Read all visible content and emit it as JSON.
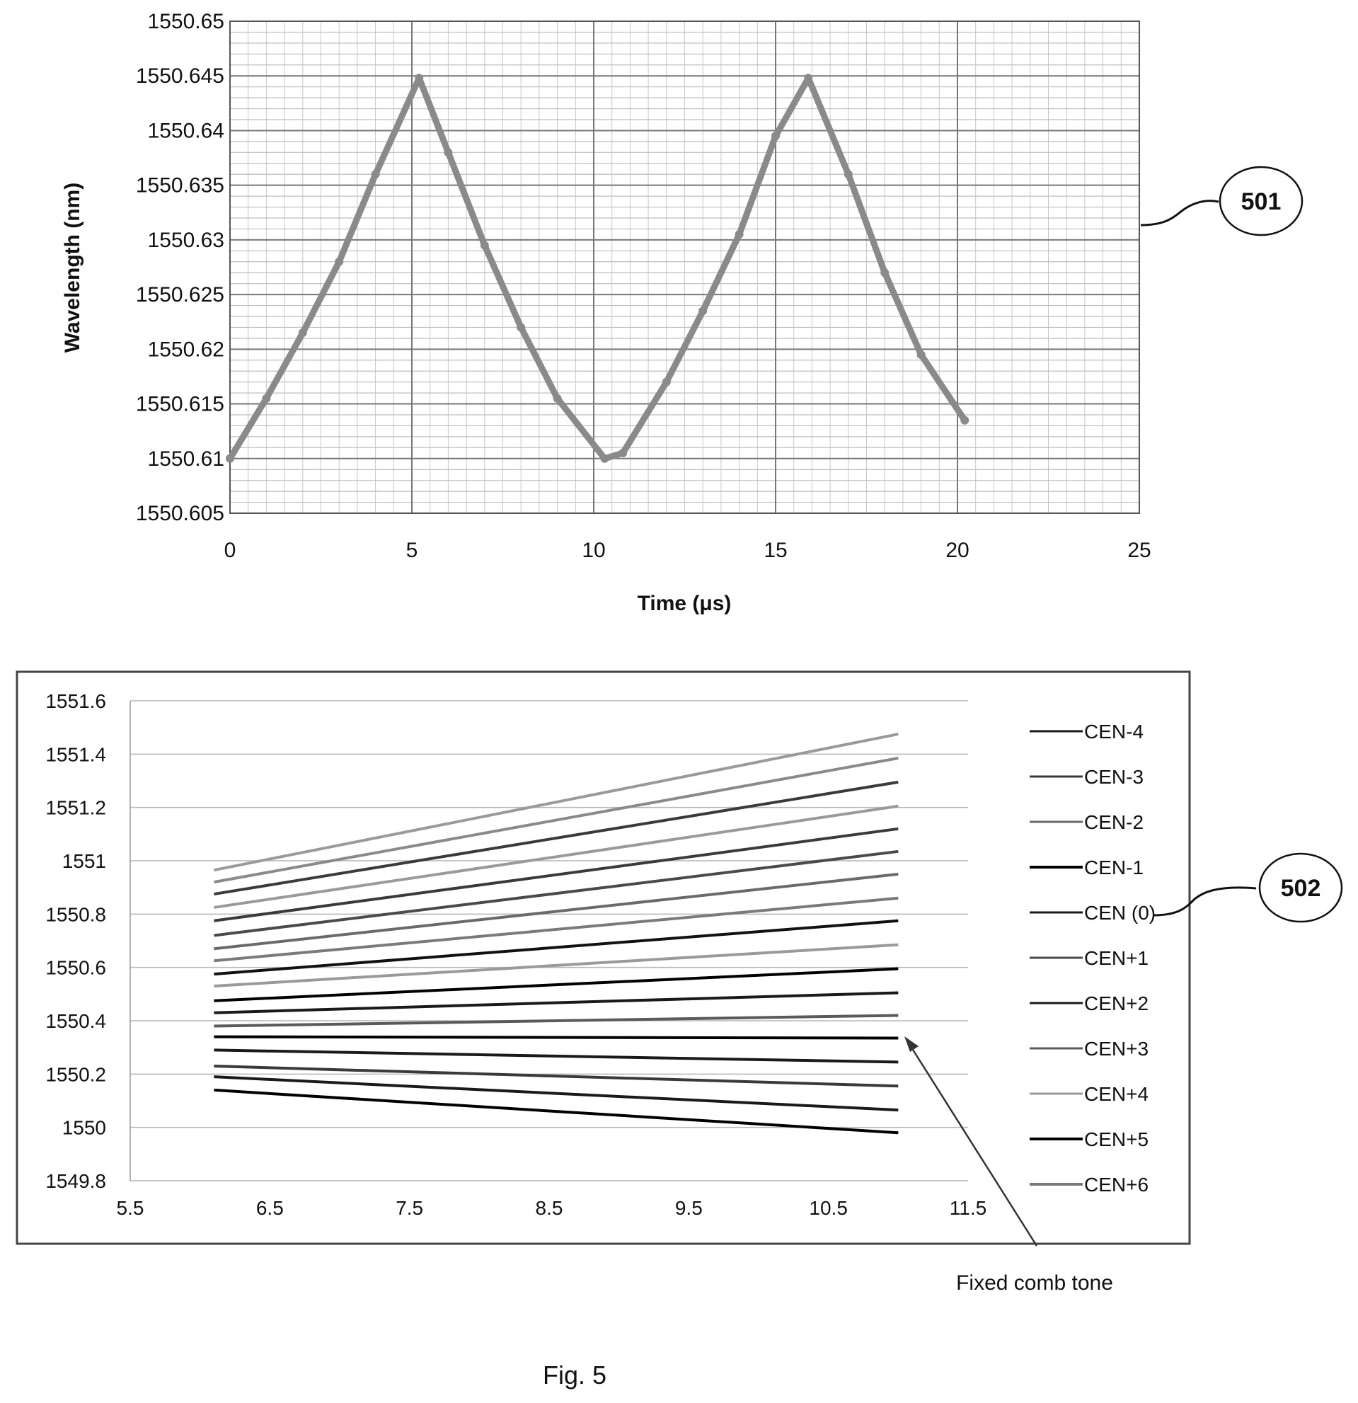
{
  "figure_caption": "Fig. 5",
  "chart_data": [
    {
      "type": "line",
      "ref": "501",
      "xlabel": "Time (μs)",
      "ylabel": "Wavelength (nm)",
      "xlim": [
        0,
        25
      ],
      "ylim": [
        1550.605,
        1550.65
      ],
      "xticks": [
        "0",
        "5",
        "10",
        "15",
        "20",
        "25"
      ],
      "yticks": [
        "1550.605",
        "1550.61",
        "1550.615",
        "1550.62",
        "1550.625",
        "1550.63",
        "1550.635",
        "1550.64",
        "1550.645",
        "1550.65"
      ],
      "grid": true,
      "series": [
        {
          "color": "#8a8a8a",
          "x": [
            0,
            1,
            2,
            3,
            4,
            5.2,
            6,
            7,
            8,
            9,
            10.3,
            10.8,
            12,
            13,
            14,
            15,
            15.9,
            17,
            18,
            19,
            20.2
          ],
          "y": [
            1550.61,
            1550.6155,
            1550.6215,
            1550.628,
            1550.636,
            1550.6448,
            1550.638,
            1550.6295,
            1550.622,
            1550.6155,
            1550.61,
            1550.6105,
            1550.617,
            1550.6235,
            1550.6305,
            1550.6395,
            1550.6448,
            1550.636,
            1550.627,
            1550.6195,
            1550.6135
          ]
        }
      ]
    },
    {
      "type": "line",
      "ref": "502",
      "xlim": [
        5.5,
        11.5
      ],
      "ylim": [
        1549.8,
        1551.6
      ],
      "xticks": [
        "5.5",
        "6.5",
        "7.5",
        "8.5",
        "9.5",
        "10.5",
        "11.5"
      ],
      "yticks": [
        "1549.8",
        "1550",
        "1550.2",
        "1550.4",
        "1550.6",
        "1550.8",
        "1551",
        "1551.2",
        "1551.4",
        "1551.6"
      ],
      "grid": true,
      "legend_position": "right",
      "annotation": "Fixed comb tone",
      "legend": [
        {
          "name": "CEN-4",
          "color": "#1a1a1a",
          "width": 3
        },
        {
          "name": "CEN-3",
          "color": "#3a3a3a",
          "width": 3
        },
        {
          "name": "CEN-2",
          "color": "#6a6a6a",
          "width": 3
        },
        {
          "name": "CEN-1",
          "color": "#000000",
          "width": 4
        },
        {
          "name": "CEN (0)",
          "color": "#1a1a1a",
          "width": 3
        },
        {
          "name": "CEN+1",
          "color": "#4a4a4a",
          "width": 3
        },
        {
          "name": "CEN+2",
          "color": "#1a1a1a",
          "width": 3
        },
        {
          "name": "CEN+3",
          "color": "#5a5a5a",
          "width": 3
        },
        {
          "name": "CEN+4",
          "color": "#9a9a9a",
          "width": 3
        },
        {
          "name": "CEN+5",
          "color": "#000000",
          "width": 4
        },
        {
          "name": "CEN+6",
          "color": "#7a7a7a",
          "width": 4
        }
      ],
      "lines": [
        {
          "x": [
            6.1,
            11.0
          ],
          "y": [
            1550.14,
            1549.98
          ],
          "color": "#000000"
        },
        {
          "x": [
            6.1,
            11.0
          ],
          "y": [
            1550.19,
            1550.065
          ],
          "color": "#1a1a1a"
        },
        {
          "x": [
            6.1,
            11.0
          ],
          "y": [
            1550.23,
            1550.155
          ],
          "color": "#3a3a3a"
        },
        {
          "x": [
            6.1,
            11.0
          ],
          "y": [
            1550.29,
            1550.245
          ],
          "color": "#1a1a1a"
        },
        {
          "x": [
            6.1,
            11.0
          ],
          "y": [
            1550.34,
            1550.335
          ],
          "color": "#000000"
        },
        {
          "x": [
            6.1,
            11.0
          ],
          "y": [
            1550.38,
            1550.42
          ],
          "color": "#5a5a5a"
        },
        {
          "x": [
            6.1,
            11.0
          ],
          "y": [
            1550.43,
            1550.505
          ],
          "color": "#1a1a1a"
        },
        {
          "x": [
            6.1,
            11.0
          ],
          "y": [
            1550.475,
            1550.595
          ],
          "color": "#000000"
        },
        {
          "x": [
            6.1,
            11.0
          ],
          "y": [
            1550.53,
            1550.685
          ],
          "color": "#9a9a9a"
        },
        {
          "x": [
            6.1,
            11.0
          ],
          "y": [
            1550.575,
            1550.775
          ],
          "color": "#111111"
        },
        {
          "x": [
            6.1,
            11.0
          ],
          "y": [
            1550.625,
            1550.86
          ],
          "color": "#7a7a7a"
        },
        {
          "x": [
            6.1,
            11.0
          ],
          "y": [
            1550.67,
            1550.95
          ],
          "color": "#6a6a6a"
        },
        {
          "x": [
            6.1,
            11.0
          ],
          "y": [
            1550.72,
            1551.035
          ],
          "color": "#4a4a4a"
        },
        {
          "x": [
            6.1,
            11.0
          ],
          "y": [
            1550.775,
            1551.12
          ],
          "color": "#3a3a3a"
        },
        {
          "x": [
            6.1,
            11.0
          ],
          "y": [
            1550.825,
            1551.205
          ],
          "color": "#9a9a9a"
        },
        {
          "x": [
            6.1,
            11.0
          ],
          "y": [
            1550.875,
            1551.295
          ],
          "color": "#3a3a3a"
        },
        {
          "x": [
            6.1,
            11.0
          ],
          "y": [
            1550.92,
            1551.385
          ],
          "color": "#8a8a8a"
        },
        {
          "x": [
            6.1,
            11.0
          ],
          "y": [
            1550.965,
            1551.475
          ],
          "color": "#9a9a9a"
        }
      ]
    }
  ]
}
